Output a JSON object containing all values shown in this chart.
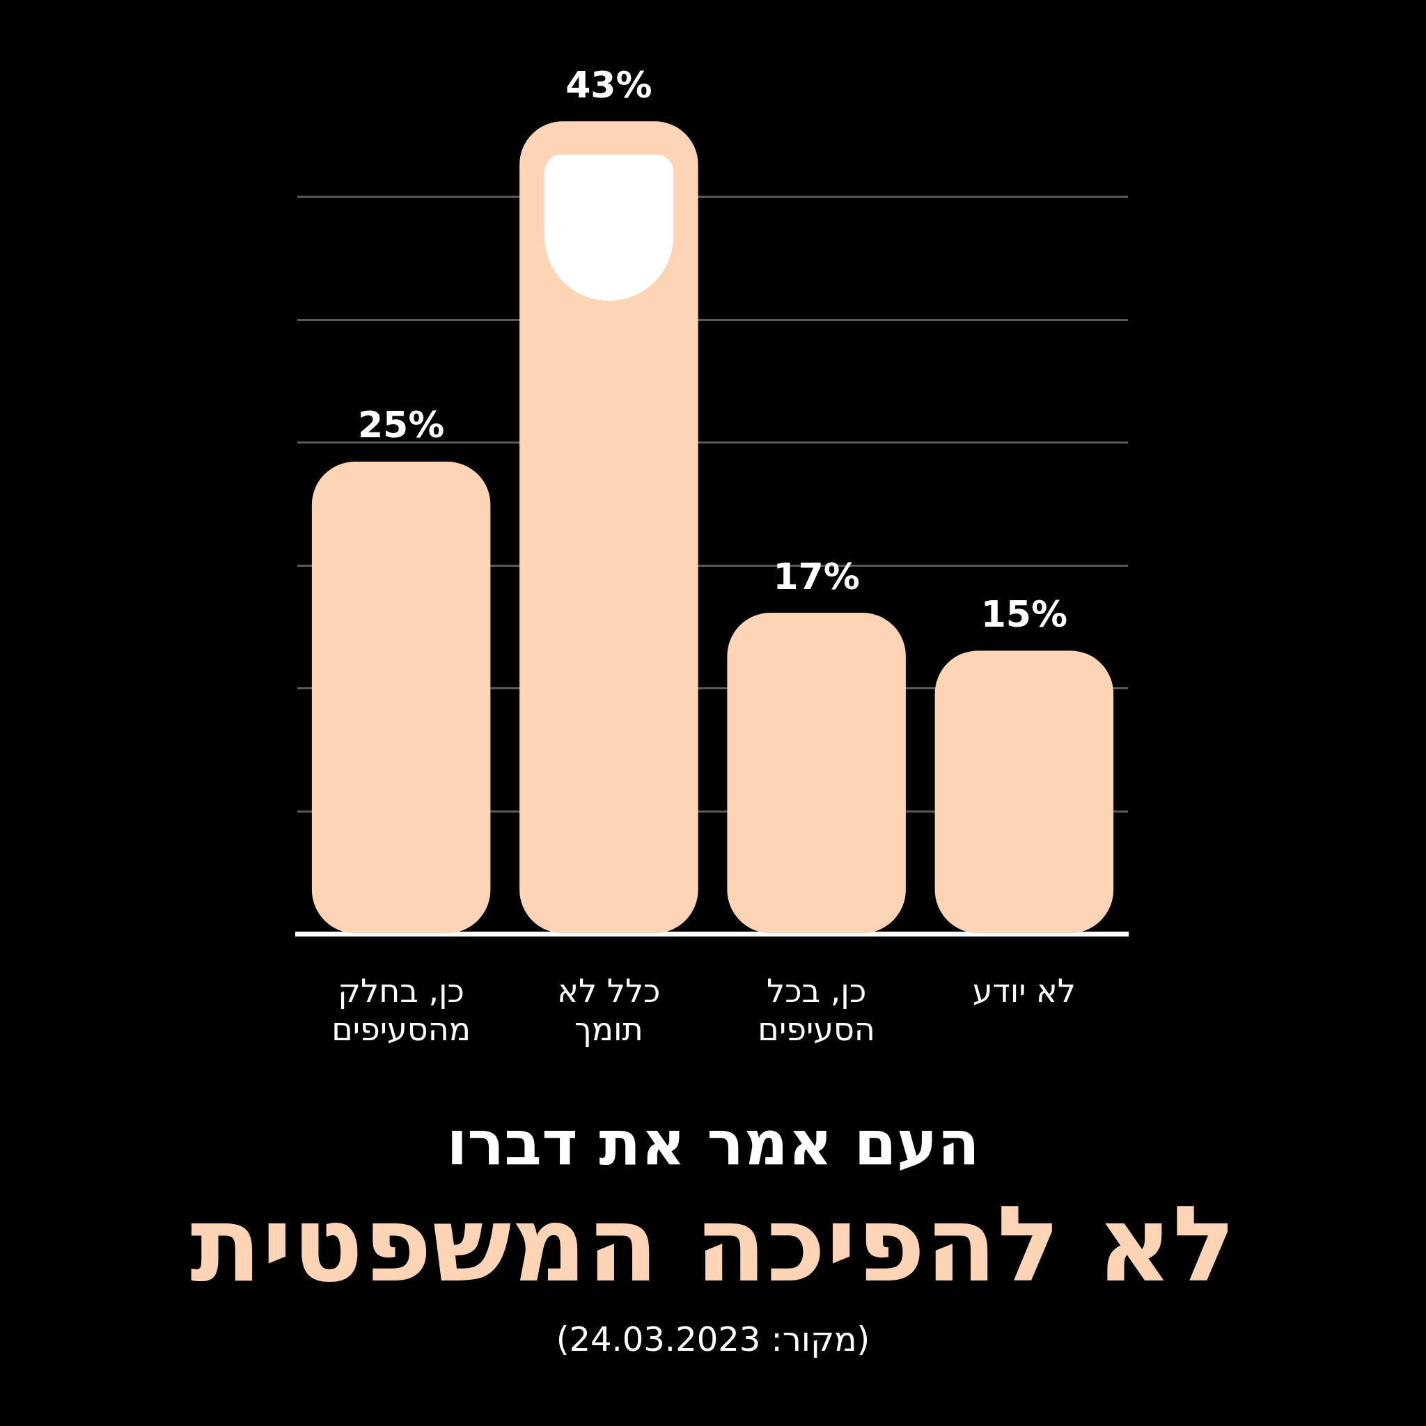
{
  "chart_data": {
    "type": "bar",
    "title": "העם אמר את דברו",
    "subtitle": "לא להפיכה המשפטית",
    "annotations": [
      "(מקור: 24.03.2023)"
    ],
    "categories": [
      "כן, בחלק מהסעיפים",
      "כלל לא תומך",
      "כן, בכל הסעיפים",
      "לא יודע"
    ],
    "values": [
      25,
      43,
      17,
      15
    ],
    "color": "#fdd5b6",
    "value_labels": [
      "25%",
      "43%",
      "17%",
      "15%"
    ],
    "yticks": [
      {
        "value": 0,
        "label": null
      },
      {
        "value": 6.5,
        "label": null
      },
      {
        "value": 13,
        "label": null
      },
      {
        "value": 19.5,
        "label": null
      },
      {
        "value": 26,
        "label": null
      },
      {
        "value": 32.5,
        "label": null
      },
      {
        "value": 39,
        "label": null
      }
    ],
    "grid": "y",
    "tick_labels": "x",
    "legend": false
  }
}
